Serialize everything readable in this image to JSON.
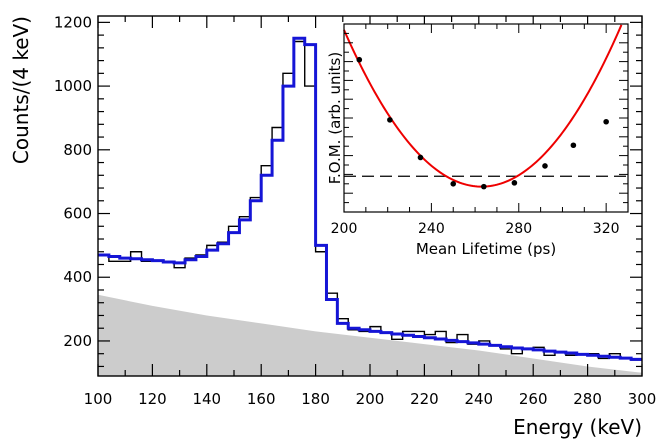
{
  "chart_data": [
    {
      "type": "line",
      "xlabel": "Energy (keV)",
      "ylabel": "Counts/(4 keV)",
      "xlim": [
        100,
        300
      ],
      "ylim": [
        90,
        1220
      ],
      "xticks": [
        100,
        120,
        140,
        160,
        180,
        200,
        220,
        240,
        260,
        280,
        300
      ],
      "yticks": [
        200,
        400,
        600,
        800,
        1000,
        1200
      ],
      "grid": false,
      "bin_width": 4,
      "bin_edges_start": 100,
      "series": [
        {
          "style": "step-histogram",
          "color": "#000000",
          "values": [
            470,
            450,
            450,
            480,
            450,
            450,
            450,
            430,
            460,
            470,
            500,
            510,
            560,
            590,
            650,
            750,
            870,
            1040,
            1140,
            1000,
            480,
            350,
            270,
            235,
            230,
            245,
            225,
            205,
            230,
            230,
            220,
            230,
            195,
            220,
            190,
            200,
            185,
            175,
            160,
            175,
            180,
            155,
            165,
            155,
            160,
            160,
            145,
            160,
            145,
            140
          ]
        },
        {
          "style": "step-fit",
          "color": "#1515d6",
          "values": [
            470,
            465,
            460,
            458,
            455,
            452,
            448,
            445,
            455,
            465,
            485,
            505,
            540,
            580,
            640,
            720,
            830,
            1000,
            1150,
            1130,
            500,
            330,
            255,
            240,
            235,
            230,
            226,
            222,
            218,
            214,
            210,
            206,
            202,
            198,
            194,
            190,
            186,
            182,
            178,
            175,
            172,
            168,
            165,
            162,
            158,
            155,
            152,
            149,
            146,
            142
          ]
        },
        {
          "style": "filled-background",
          "color": "#cccccc",
          "x": [
            100,
            120,
            140,
            160,
            180,
            200,
            220,
            240,
            260,
            280,
            300
          ],
          "values": [
            345,
            310,
            280,
            255,
            230,
            210,
            190,
            170,
            145,
            120,
            100
          ]
        }
      ]
    },
    {
      "type": "scatter",
      "xlabel": "Mean Lifetime (ps)",
      "ylabel": "F.O.M. (arb. units)",
      "xlim": [
        200,
        330
      ],
      "ylim": [
        0,
        10
      ],
      "xticks": [
        200,
        240,
        280,
        320
      ],
      "grid": false,
      "points": {
        "x": [
          207,
          221,
          235,
          250,
          264,
          278,
          292,
          305,
          320
        ],
        "y": [
          8.1,
          4.9,
          2.9,
          1.5,
          1.35,
          1.55,
          2.45,
          3.55,
          4.8
        ]
      },
      "fit_curve": {
        "color": "#ee0000",
        "vertex_x": 263,
        "vertex_y": 1.35,
        "curvature": 0.0021
      },
      "reference_line": {
        "y": 1.9,
        "style": "dashed",
        "color": "#000000"
      }
    }
  ]
}
